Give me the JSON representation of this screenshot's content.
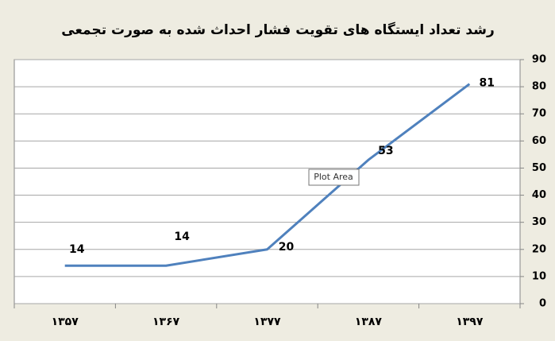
{
  "chart_data": {
    "type": "line",
    "title": "رشد تعداد ایستگاه های تقویت فشار احداث شده به صورت تجمعی",
    "categories": [
      "۱۳۵۷",
      "۱۳۶۷",
      "۱۳۷۷",
      "۱۳۸۷",
      "۱۳۹۷"
    ],
    "series": [
      {
        "name": "",
        "color": "#4f81bd",
        "values": [
          14,
          14,
          20,
          53,
          81
        ]
      }
    ],
    "ylim": [
      0,
      90
    ],
    "yticks": [
      0,
      10,
      20,
      30,
      40,
      50,
      60,
      70,
      80,
      90
    ],
    "grid": true,
    "yaxis_side": "right",
    "annotation": "Plot Area"
  }
}
